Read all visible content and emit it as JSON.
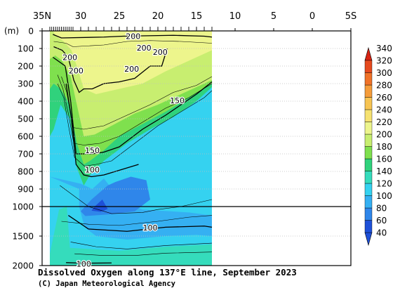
{
  "chart_data": {
    "type": "heatmap",
    "title": "Dissolved Oxygen along 137°E line, September 2023",
    "credit": "(C) Japan Meteorological Agency",
    "x_axis": {
      "ticks": [
        {
          "value": 35,
          "label": "35N"
        },
        {
          "value": 30,
          "label": "30"
        },
        {
          "value": 25,
          "label": "25"
        },
        {
          "value": 20,
          "label": "20"
        },
        {
          "value": 15,
          "label": "15"
        },
        {
          "value": 10,
          "label": "10"
        },
        {
          "value": 5,
          "label": "5"
        },
        {
          "value": 0,
          "label": "0"
        },
        {
          "value": -5,
          "label": "5S"
        }
      ],
      "range": [
        35,
        -5
      ],
      "data_extent": [
        34.0,
        13.0
      ]
    },
    "y_axis": {
      "unit_label": "(m)",
      "upper_ticks": [
        0,
        100,
        200,
        300,
        400,
        500,
        600,
        700,
        800,
        900,
        1000
      ],
      "lower_ticks": [
        1500,
        2000
      ],
      "range": [
        0,
        2000
      ],
      "scale_break_depth": 1000
    },
    "colorbar": {
      "levels": [
        40,
        60,
        80,
        100,
        120,
        140,
        160,
        180,
        200,
        220,
        240,
        260,
        280,
        300,
        320,
        340
      ],
      "colors": [
        "#1e50d8",
        "#2f86ea",
        "#35b0f2",
        "#35d2f0",
        "#35dcbc",
        "#30d27c",
        "#7fe04e",
        "#c8ee70",
        "#edf58c",
        "#f6e270",
        "#f7c452",
        "#f59c3a",
        "#f07228",
        "#e64a1e",
        "#d82414"
      ]
    },
    "contour_labels": [
      {
        "text": "200",
        "x": 23.2,
        "y": 30
      },
      {
        "text": "200",
        "x": 21.8,
        "y": 95
      },
      {
        "text": "200",
        "x": 19.7,
        "y": 120
      },
      {
        "text": "200",
        "x": 31.4,
        "y": 150
      },
      {
        "text": "200",
        "x": 30.6,
        "y": 225
      },
      {
        "text": "200",
        "x": 23.4,
        "y": 215
      },
      {
        "text": "150",
        "x": 17.5,
        "y": 395
      },
      {
        "text": "150",
        "x": 28.5,
        "y": 680
      },
      {
        "text": "100",
        "x": 28.5,
        "y": 790
      },
      {
        "text": "100",
        "x": 21.0,
        "y": 1360
      },
      {
        "text": "100",
        "x": 29.6,
        "y": 1970
      }
    ]
  }
}
